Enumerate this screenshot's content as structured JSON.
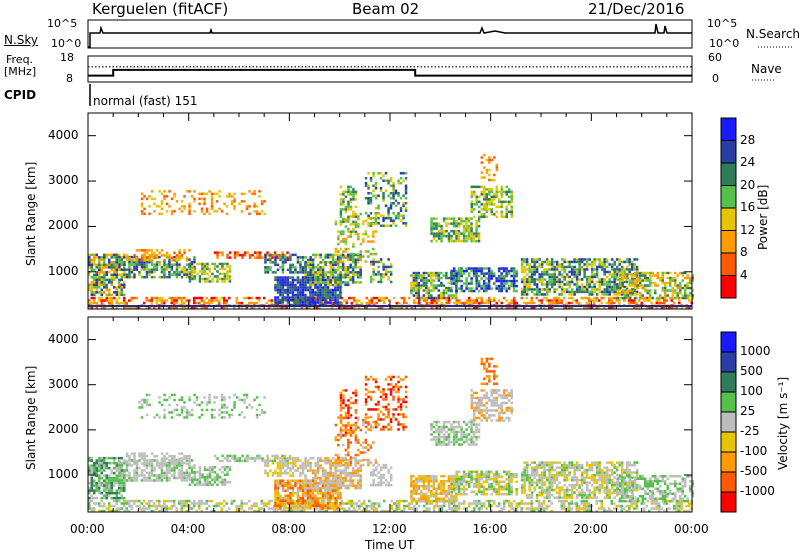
{
  "header": {
    "station": "Kerguelen (fitACF)",
    "beam": "Beam 02",
    "date": "21/Dec/2016"
  },
  "top_panels": {
    "nsky_label": "N.Sky",
    "nsky_ticks": [
      "10^5",
      "10^0"
    ],
    "nsearch_label": "N.Search",
    "nsearch_ticks": [
      "10^5",
      "10^0"
    ],
    "freq_label_1": "Freq.",
    "freq_label_2": "[MHz]",
    "freq_ticks": [
      "18",
      "8"
    ],
    "nave_label": "Nave",
    "nave_ticks": [
      "60",
      "0"
    ],
    "cpid_label": "CPID",
    "cpid_value": "normal (fast) 151"
  },
  "colors": {
    "power_scale": [
      "#1a1aff",
      "#2a3fa6",
      "#2f7d5a",
      "#55c04a",
      "#e6c400",
      "#ff9a00",
      "#ff5a00",
      "#ff0000"
    ],
    "velocity_scale": [
      "#1a1aff",
      "#2a3fa6",
      "#2f7d5a",
      "#55c04a",
      "#bdbdbd",
      "#e6c400",
      "#ff9a00",
      "#ff5a00",
      "#ff0000"
    ]
  },
  "chart_data": [
    {
      "type": "heatmap",
      "panel": "power",
      "ylabel": "Slant Range [km]",
      "y_ticks": [
        "4000",
        "3000",
        "2000",
        "1000"
      ],
      "ylim": [
        180,
        4500
      ],
      "xlim": [
        "00:00",
        "24:00"
      ],
      "colorbar_label": "Power [dB]",
      "colorbar_ticks": [
        "28",
        "24",
        "20",
        "16",
        "12",
        "8",
        "4"
      ],
      "colorbar_range": [
        0,
        32
      ]
    },
    {
      "type": "heatmap",
      "panel": "velocity",
      "ylabel": "Slant Range [km]",
      "y_ticks": [
        "4000",
        "3000",
        "2000",
        "1000"
      ],
      "ylim": [
        180,
        4500
      ],
      "xlabel": "Time UT",
      "x_ticks": [
        "00:00",
        "04:00",
        "08:00",
        "12:00",
        "16:00",
        "20:00",
        "00:00"
      ],
      "colorbar_label": "Velocity [m s⁻¹]",
      "colorbar_ticks": [
        "1000",
        "500",
        "100",
        "25",
        "-25",
        "-100",
        "-500",
        "-1000"
      ]
    },
    {
      "type": "line",
      "panel": "frequency",
      "series": [
        {
          "name": "Freq.",
          "x_hours": [
            0,
            1.0,
            1.0,
            13.0,
            13.0,
            24
          ],
          "values": [
            10,
            10,
            12.6,
            12.6,
            10,
            10
          ]
        },
        {
          "name": "Nave",
          "x_hours": [
            0,
            24
          ],
          "values": [
            35,
            35
          ]
        }
      ]
    }
  ]
}
